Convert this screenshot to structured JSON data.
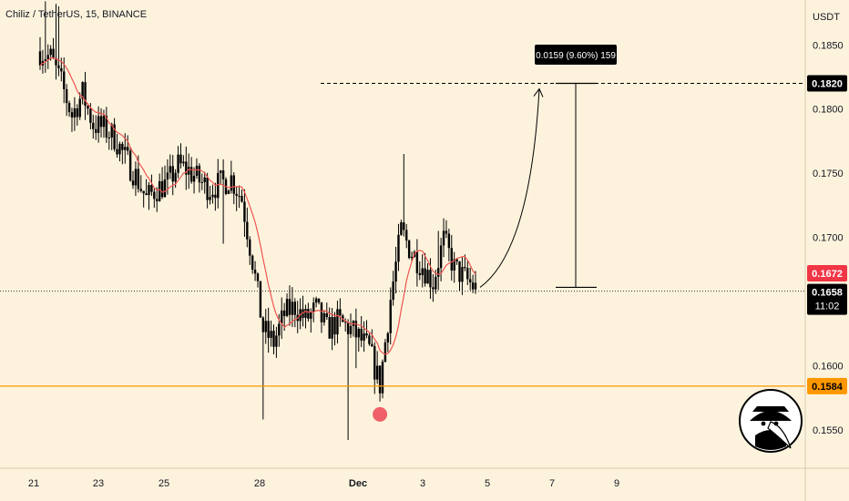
{
  "chart_data": {
    "type": "candlestick",
    "title": "Chiliz / TetherUS, 15, BINANCE",
    "currency_label": "USDT",
    "y_range": [
      0.152,
      0.1885
    ],
    "y_ticks": [
      "0.1850",
      "0.1800",
      "0.1750",
      "0.1700",
      "0.1600",
      "0.1550"
    ],
    "x_ticks": [
      "21",
      "23",
      "25",
      "28",
      "Dec",
      "3",
      "5",
      "7",
      "9"
    ],
    "price_labels": {
      "target": "0.1820",
      "ma_value": "0.1672",
      "last_price": "0.1658",
      "countdown": "11:02",
      "support": "0.1584"
    },
    "measure_label": "0.0159 (9.60%) 159",
    "levels": {
      "target": 0.182,
      "support": 0.1584,
      "current": 0.1658,
      "ma": 0.1672,
      "measure_start": 0.1661
    },
    "price_path": [
      [
        0,
        0.1845
      ],
      [
        4,
        0.184
      ],
      [
        8,
        0.182
      ],
      [
        12,
        0.1795
      ],
      [
        16,
        0.1812
      ],
      [
        20,
        0.1788
      ],
      [
        24,
        0.1785
      ],
      [
        28,
        0.1778
      ],
      [
        32,
        0.1762
      ],
      [
        36,
        0.1748
      ],
      [
        40,
        0.173
      ],
      [
        44,
        0.1738
      ],
      [
        48,
        0.1742
      ],
      [
        52,
        0.1756
      ],
      [
        56,
        0.1752
      ],
      [
        60,
        0.1744
      ],
      [
        64,
        0.1738
      ],
      [
        68,
        0.1742
      ],
      [
        72,
        0.1746
      ],
      [
        76,
        0.173
      ],
      [
        80,
        0.1682
      ],
      [
        84,
        0.1628
      ],
      [
        88,
        0.1618
      ],
      [
        92,
        0.164
      ],
      [
        96,
        0.1646
      ],
      [
        100,
        0.1636
      ],
      [
        104,
        0.1644
      ],
      [
        108,
        0.1628
      ],
      [
        112,
        0.1634
      ],
      [
        116,
        0.163
      ],
      [
        120,
        0.1622
      ],
      [
        124,
        0.1612
      ],
      [
        128,
        0.1585
      ],
      [
        132,
        0.1652
      ],
      [
        136,
        0.1705
      ],
      [
        140,
        0.1688
      ],
      [
        144,
        0.1678
      ],
      [
        148,
        0.1665
      ],
      [
        152,
        0.1698
      ],
      [
        156,
        0.1676
      ],
      [
        160,
        0.1668
      ],
      [
        164,
        0.166
      ]
    ],
    "candle_count": 165,
    "callouts": [
      "swing-low-marker",
      "projection-arrow",
      "measure-tool"
    ]
  },
  "colors": {
    "background": "#fdf3dd",
    "candle": "#000000",
    "ma": "#f05550",
    "support": "#ff9800",
    "label_dark": "#000000",
    "label_red": "#f23645",
    "swing_marker": "#f0606a"
  },
  "icons": [
    "plague-doctor-avatar-icon"
  ]
}
